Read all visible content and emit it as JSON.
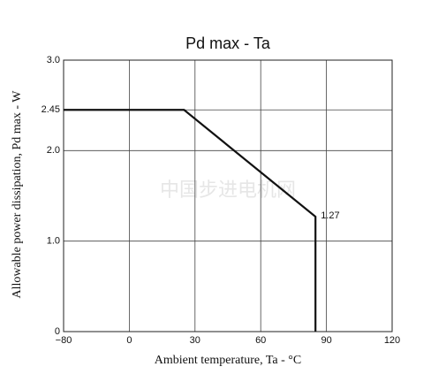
{
  "chart_data": {
    "type": "line",
    "title": "Pd max  -  Ta",
    "x_label": "Ambient temperature, Ta - °C",
    "y_label": "Allowable power dissipation, Pd max - W",
    "watermark": "中国步进电机网",
    "x": [
      -80,
      25,
      85,
      85
    ],
    "values": [
      2.45,
      2.45,
      1.27,
      0
    ],
    "value_labels": [
      null,
      null,
      "1.27",
      null
    ],
    "color": "#111111",
    "xlim": [
      -80,
      120
    ],
    "xticks": [
      {
        "value": -80,
        "label": "−80"
      },
      0,
      30,
      60,
      90,
      120
    ],
    "ylim": [
      0,
      3
    ],
    "yticks": [
      0,
      {
        "value": 1,
        "label": "1.0"
      },
      {
        "value": 2,
        "label": "2.0"
      },
      2.45,
      {
        "value": 3,
        "label": "3.0"
      }
    ],
    "grid": true
  }
}
